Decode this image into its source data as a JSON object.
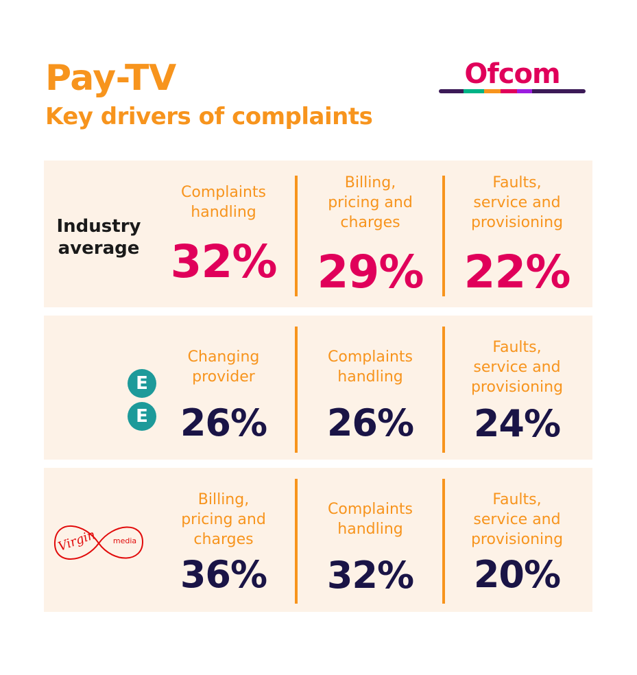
{
  "header": {
    "title": "Pay-TV",
    "subtitle": "Key drivers of complaints",
    "logo_text": "Ofcom"
  },
  "rows": [
    {
      "label": "Industry average",
      "value_color": "#e0005a",
      "items": [
        {
          "label": "Complaints handling",
          "value": "32%"
        },
        {
          "label": "Billing, pricing and charges",
          "value": "29%"
        },
        {
          "label": "Faults, service and provisioning",
          "value": "22%"
        }
      ]
    },
    {
      "brand": "EE",
      "logo_letters": [
        "E",
        "E"
      ],
      "value_color": "#1a1446",
      "items": [
        {
          "label": "Changing provider",
          "value": "26%"
        },
        {
          "label": "Complaints handling",
          "value": "26%"
        },
        {
          "label": "Faults, service and provisioning",
          "value": "24%"
        }
      ]
    },
    {
      "brand": "Virgin Media",
      "logo_script": "Virgin",
      "logo_sub": "media",
      "value_color": "#1a1446",
      "items": [
        {
          "label": "Billing, pricing and charges",
          "value": "36%"
        },
        {
          "label": "Complaints handling",
          "value": "32%"
        },
        {
          "label": "Faults, service and provisioning",
          "value": "20%"
        }
      ]
    }
  ],
  "colors": {
    "accent": "#f7941d",
    "industry_value": "#e0005a",
    "provider_value": "#1a1446",
    "row_background": "#fdf2e7",
    "ee_teal": "#1d9a9a",
    "virgin_red": "#e10a0a"
  }
}
